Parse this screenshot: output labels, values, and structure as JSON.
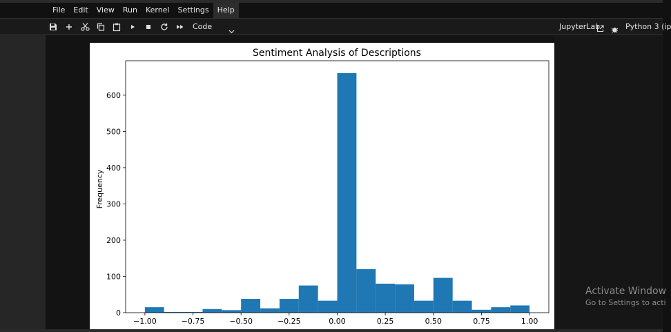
{
  "menu": {
    "items": [
      "File",
      "Edit",
      "View",
      "Run",
      "Kernel",
      "Settings",
      "Help"
    ],
    "active_index": 6
  },
  "toolbar": {
    "buttons": [
      "save-icon",
      "add-icon",
      "cut-icon",
      "copy-icon",
      "paste-icon",
      "run-icon",
      "stop-icon",
      "restart-icon",
      "fast-forward-icon"
    ],
    "cell_type": "Code",
    "jupyterlab_label": "JupyterLab",
    "kernel_name": "Python 3 (ip"
  },
  "watermark": {
    "line1": "Activate Window",
    "line2": "Go to Settings to acti"
  },
  "chart_data": {
    "type": "bar",
    "title": "Sentiment Analysis of Descriptions",
    "xlabel": "",
    "ylabel": "Frequency",
    "xlim": [
      -1.1,
      1.1
    ],
    "ylim": [
      0,
      695
    ],
    "bin_edges": [
      -1.0,
      -0.9,
      -0.8,
      -0.7,
      -0.6,
      -0.5,
      -0.4,
      -0.3,
      -0.2,
      -0.1,
      0.0,
      0.1,
      0.2,
      0.3,
      0.4,
      0.5,
      0.6,
      0.7,
      0.8,
      0.9,
      1.0
    ],
    "values": [
      15,
      2,
      2,
      10,
      7,
      38,
      12,
      38,
      75,
      33,
      661,
      120,
      80,
      78,
      33,
      96,
      33,
      8,
      15,
      20
    ],
    "x_ticks": [
      -1.0,
      -0.75,
      -0.5,
      -0.25,
      0.0,
      0.25,
      0.5,
      0.75,
      1.0
    ],
    "x_tick_labels": [
      "−1.00",
      "−0.75",
      "−0.50",
      "−0.25",
      "0.00",
      "0.25",
      "0.50",
      "0.75",
      "1.00"
    ],
    "y_ticks": [
      0,
      100,
      200,
      300,
      400,
      500,
      600
    ],
    "y_tick_labels": [
      "0",
      "100",
      "200",
      "300",
      "400",
      "500",
      "600"
    ],
    "bar_color": "#1f77b4",
    "grid": false,
    "legend": "none"
  }
}
